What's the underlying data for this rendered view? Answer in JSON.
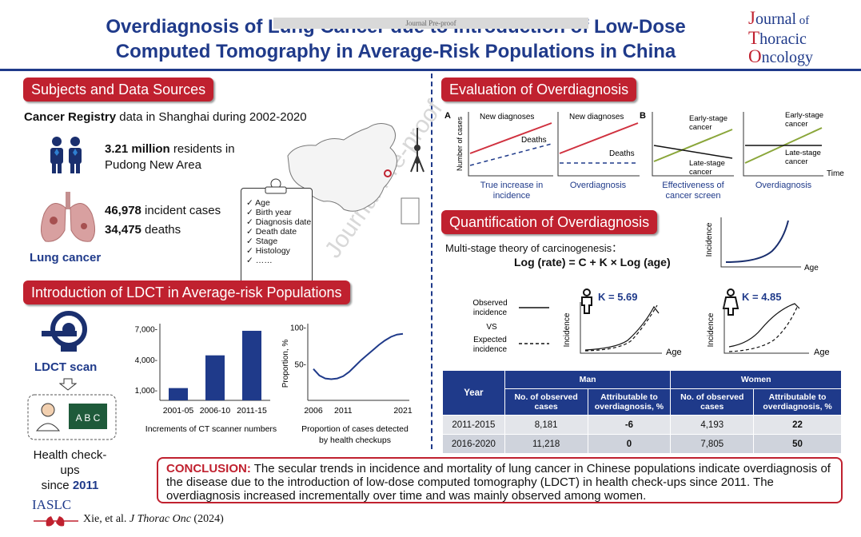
{
  "header": {
    "title_line1": "Overdiagnosis of Lung Cancer due to Introduction of Low-Dose",
    "title_line2": "Computed Tomography in Average-Risk Populations in China",
    "journal_tag": "Journal Pre-proof",
    "logo": {
      "j": "J",
      "journal": "ournal",
      "of": " of",
      "t": "T",
      "thoracic": "horacic",
      "o": "O",
      "oncology": "ncology"
    }
  },
  "watermark": "Journal Pre-proof",
  "subjects": {
    "heading": "Subjects and Data Sources",
    "registry_bold": "Cancer Registry",
    "registry_rest": " data in Shanghai during 2002-2020",
    "residents_bold": "3.21 million",
    "residents_rest": " residents in",
    "residents_line2": "Pudong New Area",
    "cases_bold": "46,978",
    "cases_rest": " incident cases",
    "deaths_bold": "34,475",
    "deaths_rest": " deaths",
    "lung_label": "Lung cancer",
    "checklist": [
      "Age",
      "Birth year",
      "Diagnosis date",
      "Death date",
      "Stage",
      "Histology",
      "……"
    ]
  },
  "ldct": {
    "heading": "Introduction of LDCT in Average-risk Populations",
    "scan_label": "LDCT scan",
    "checkups_line1": "Health check-ups",
    "checkups_line2": "since ",
    "checkups_year": "2011"
  },
  "chart_data": [
    {
      "type": "bar",
      "categories": [
        "2001-05",
        "2006-10",
        "2011-15"
      ],
      "values": [
        1200,
        4400,
        6800
      ],
      "ylim": [
        0,
        7500
      ],
      "yticks": [
        "1,000-",
        "4,000-",
        "7,000-"
      ],
      "ytick_values": [
        1000,
        4000,
        7000
      ],
      "caption": "Increments of CT scanner numbers",
      "color": "#1f3a8a"
    },
    {
      "type": "line",
      "x": [
        2006,
        2007,
        2008,
        2009,
        2010,
        2011,
        2012,
        2013,
        2014,
        2015,
        2016,
        2017,
        2018,
        2019,
        2020,
        2021
      ],
      "y": [
        43,
        34,
        30,
        29,
        30,
        33,
        39,
        47,
        55,
        62,
        69,
        76,
        82,
        87,
        90,
        91
      ],
      "ylim": [
        0,
        105
      ],
      "xticks": [
        "2006",
        "2011",
        "2021"
      ],
      "yticks": [
        "50-",
        "100-"
      ],
      "ylabel": "Proportion, %",
      "caption_line1": "Proportion of cases detected",
      "caption_line2": "by health checkups",
      "color": "#1f3a8a"
    }
  ],
  "evaluation": {
    "heading": "Evaluation of Overdiagnosis",
    "label_a": "A",
    "label_b": "B",
    "ylabel": "Number of cases",
    "new_diagnoses": "New diagnoses",
    "deaths": "Deaths",
    "early_line1": "Early-stage",
    "early_line2": "cancer",
    "late_line1": "Late-stage",
    "late_line2": "cancer",
    "time": "Time",
    "cap1_line1": "True increase in",
    "cap1_line2": "incidence",
    "cap2": "Overdiagnosis",
    "cap3_line1": "Effectiveness of",
    "cap3_line2": "cancer screen",
    "cap4": "Overdiagnosis"
  },
  "quantification": {
    "heading": "Quantification of Overdiagnosis",
    "theory": "Multi-stage theory of carcinogenesis：",
    "formula": "Log (rate) = C + K × Log (age)",
    "incidence": "Incidence",
    "age": "Age",
    "observed_line1": "Observed",
    "observed_line2": "incidence",
    "vs": "VS",
    "expected_line1": "Expected",
    "expected_line2": "incidence",
    "k_man": "K = 5.69",
    "k_women": "K = 4.85"
  },
  "table": {
    "col_year": "Year",
    "group_man": "Man",
    "group_women": "Women",
    "sub_obs_1": "No. of observed",
    "sub_obs_2": "cases",
    "sub_attr_1": "Attributable to",
    "sub_attr_2": "overdiagnosis, %",
    "rows": [
      {
        "year": "2011-2015",
        "man_obs": "8,181",
        "man_attr": "-6",
        "women_obs": "4,193",
        "women_attr": "22"
      },
      {
        "year": "2016-2020",
        "man_obs": "11,218",
        "man_attr": "0",
        "women_obs": "7,805",
        "women_attr": "50"
      }
    ]
  },
  "conclusion": {
    "label": "CONCLUSION:",
    "text": " The secular trends in incidence and mortality of lung cancer in Chinese populations indicate overdiagnosis of the disease due to the introduction of low-dose computed tomography (LDCT) in health check-ups since 2011. The overdiagnosis increased incrementally over time and was mainly observed among women."
  },
  "footer": {
    "iaslc": "IASLC",
    "citation_authors": "Xie, et al. ",
    "citation_journal": "J Thorac Onc",
    "citation_year": " (2024)"
  },
  "colors": {
    "brand_blue": "#1f3a8a",
    "brand_red": "#c0212f",
    "line_red": "#d0313f",
    "line_green": "#8aa63a",
    "table_header": "#1f3a8a"
  }
}
